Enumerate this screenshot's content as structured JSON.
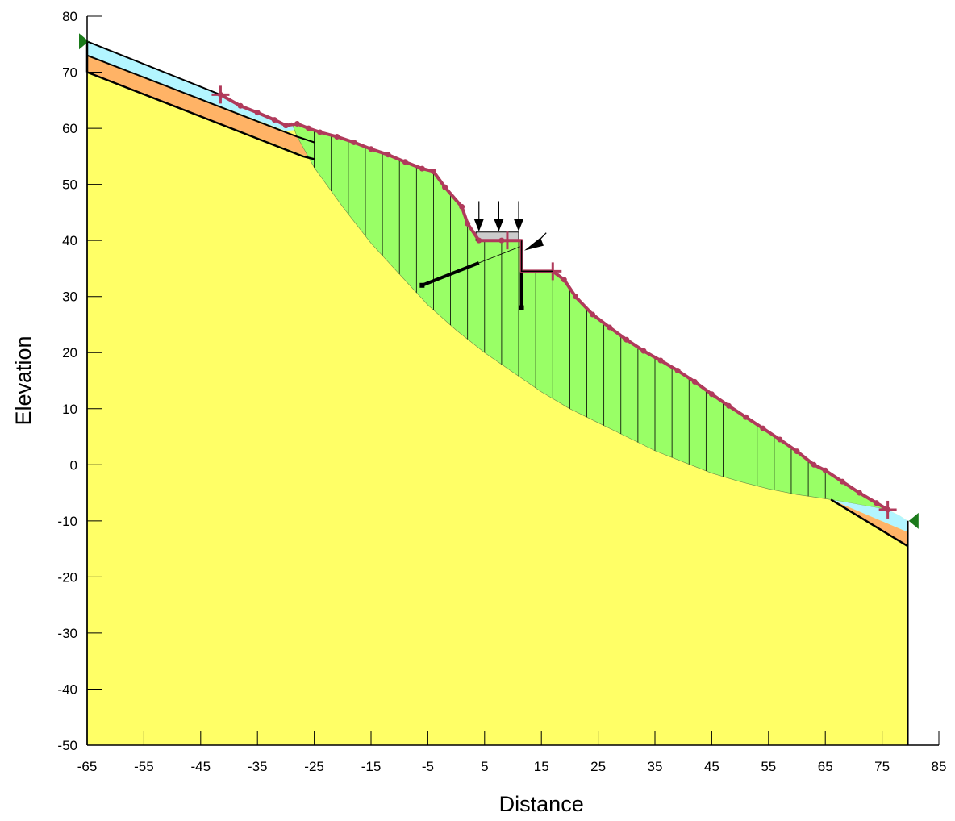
{
  "chart_data": {
    "type": "diagram",
    "xlabel": "Distance",
    "ylabel": "Elevation",
    "xlim": [
      -65,
      85
    ],
    "ylim": [
      -50,
      80
    ],
    "x_ticks": [
      -65,
      -55,
      -45,
      -35,
      -25,
      -15,
      -5,
      5,
      15,
      25,
      35,
      45,
      55,
      65,
      75,
      85
    ],
    "y_ticks": [
      -50,
      -40,
      -30,
      -20,
      -10,
      0,
      10,
      20,
      30,
      40,
      50,
      60,
      70,
      80
    ],
    "colors": {
      "bedrock": "#FFFF66",
      "weak_layer": "#FFB366",
      "top_layer": "#B3F5FF",
      "slip_mass": "#99FF66",
      "slip_surface_line": "#B03A5B",
      "water_marker": "#1A7A1A",
      "outline": "#000000"
    },
    "materials": [
      {
        "id": "bedrock"
      },
      {
        "id": "weak_layer"
      },
      {
        "id": "top_layer"
      },
      {
        "id": "slip_mass"
      }
    ],
    "features": {
      "slip_entry": [
        -41.5,
        66
      ],
      "slip_exit": [
        76,
        -8
      ],
      "surface_markers": [
        [
          9,
          40
        ],
        [
          17,
          34.5
        ]
      ],
      "piezometric_markers": [
        [
          -65,
          75.5
        ],
        [
          80,
          -10
        ]
      ],
      "anchor": [
        [
          -6,
          32
        ],
        [
          4,
          36
        ]
      ],
      "wall": [
        [
          11.5,
          40
        ],
        [
          11.5,
          28
        ]
      ],
      "point_load_direction": [
        [
          15,
          40.5
        ],
        [
          10,
          38.5
        ]
      ],
      "distributed_load_x": [
        4,
        7.5,
        11
      ]
    }
  }
}
